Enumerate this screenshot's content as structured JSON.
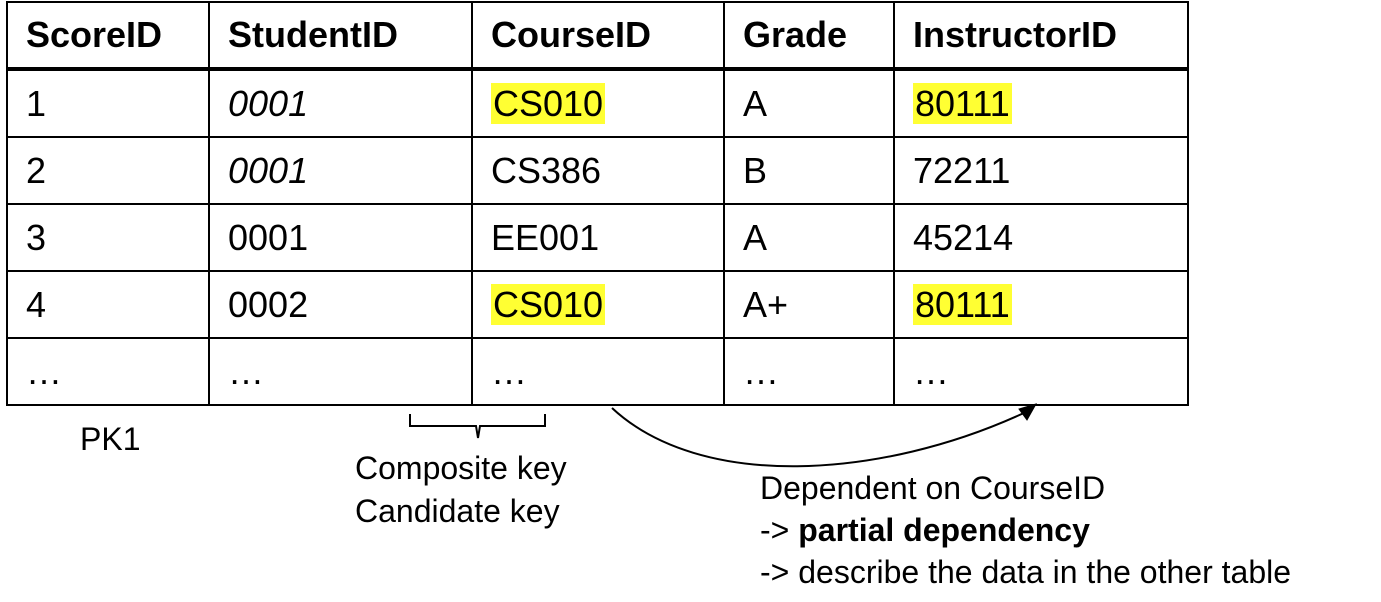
{
  "table": {
    "headers": [
      "ScoreID",
      "StudentID",
      "CourseID",
      "Grade",
      "InstructorID"
    ],
    "rows": [
      [
        "1",
        "0001",
        "CS010",
        "A",
        "80111"
      ],
      [
        "2",
        "0001",
        "CS386",
        "B",
        "72211"
      ],
      [
        "3",
        "0001",
        "EE001",
        "A",
        "45214"
      ],
      [
        "4",
        "0002",
        "CS010",
        "A+",
        "80111"
      ],
      [
        "…",
        "…",
        "…",
        "…",
        "…"
      ]
    ],
    "highlight_color": "#ffff33"
  },
  "labels": {
    "pk": "PK1",
    "composite_key": "Composite key",
    "candidate_key": "Candidate key",
    "dependent_on": "Dependent on CourseID",
    "arrow_prefix_1": "-> ",
    "partial_dependency": "partial dependency",
    "describe_other": "-> describe the data in the other table"
  }
}
